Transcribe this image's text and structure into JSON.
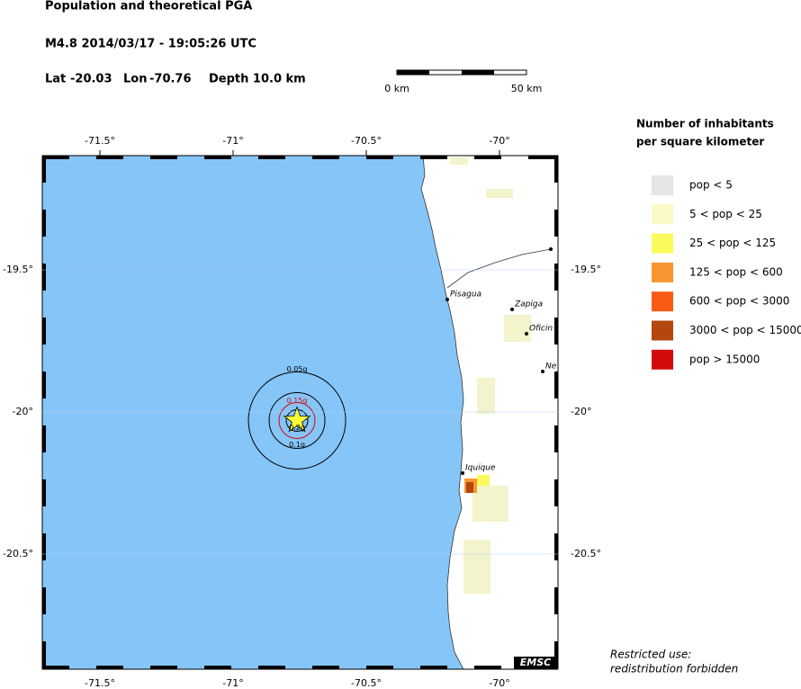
{
  "header": {
    "title": "Population and theoretical PGA",
    "event": "M4.8  2014/03/17 - 19:05:26 UTC",
    "lat": {
      "label": "Lat",
      "value": -20.03
    },
    "lon": {
      "label": "Lon",
      "value": -70.76
    },
    "depth": "Depth  10.0 km"
  },
  "scale_bar": {
    "start": "0 km",
    "end": "50 km"
  },
  "map": {
    "xticks": [
      {
        "value": -71.5,
        "label": "-71.5°"
      },
      {
        "value": -71,
        "label": "-71°"
      },
      {
        "value": -70.5,
        "label": "-70.5°"
      },
      {
        "value": -70,
        "label": "-70°"
      }
    ],
    "yticks": [
      {
        "value": -19.5,
        "label": "-19.5°"
      },
      {
        "value": -20,
        "label": "-20°"
      },
      {
        "value": -20.5,
        "label": "-20.5°"
      }
    ],
    "cities": [
      "Pisagua",
      "Zapiga",
      "Oficin",
      "Ne",
      "Iquique"
    ],
    "contours": [
      "0.05g",
      "0.15g",
      "0.2g",
      "0.1g"
    ],
    "logo": "EMSC"
  },
  "legend": {
    "title": [
      "Number of inhabitants",
      "per square kilometer"
    ],
    "items": [
      {
        "label": "pop < 5",
        "color": "#e6e6e6"
      },
      {
        "label": "5 < pop < 25",
        "color": "#fafac8"
      },
      {
        "label": "25 < pop < 125",
        "color": "#fafa5a"
      },
      {
        "label": "125 < pop < 600",
        "color": "#fa9632"
      },
      {
        "label": "600 < pop < 3000",
        "color": "#fa5a14"
      },
      {
        "label": "3000 < pop < 15000",
        "color": "#b4460f"
      },
      {
        "label": "pop > 15000",
        "color": "#d20a0a"
      }
    ]
  },
  "footer": [
    "Restricted use:",
    "redistribution forbidden"
  ]
}
